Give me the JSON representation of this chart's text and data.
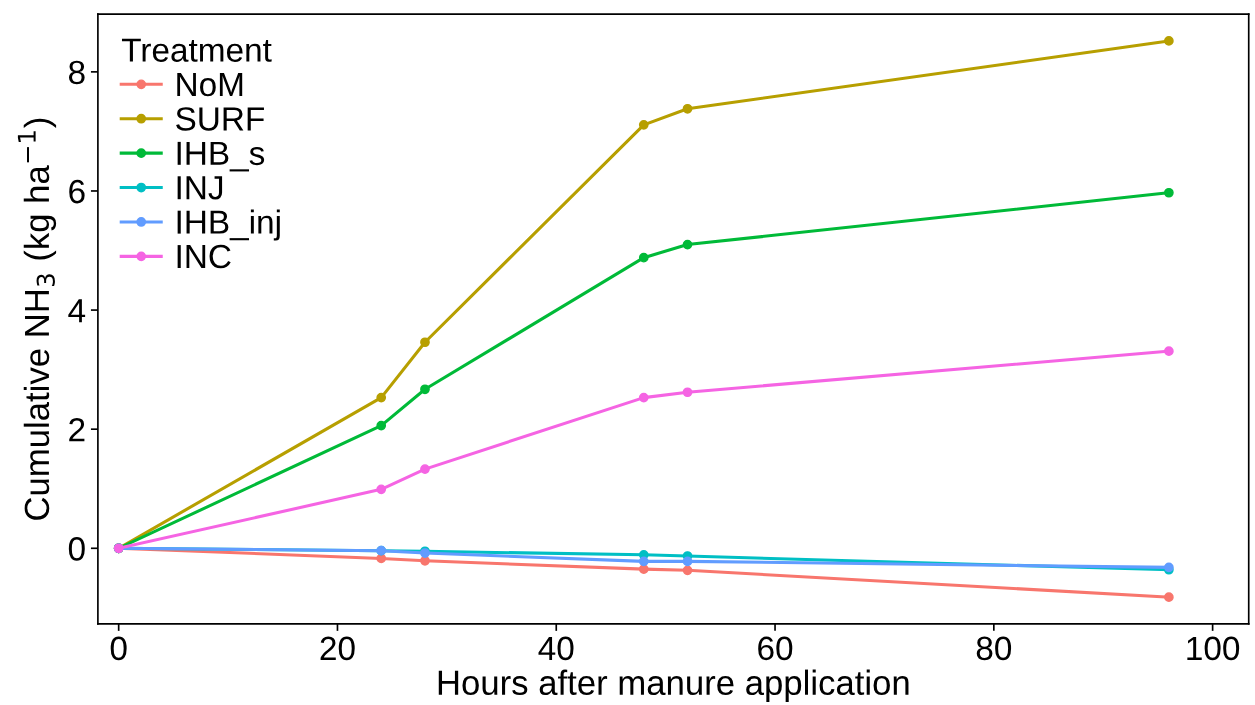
{
  "chart_data": {
    "type": "line",
    "xlabel": "Hours after manure application",
    "ylabel": "Cumulative NH$_{3}$ (kg ha$^{−1}$)",
    "legend_title": "Treatment",
    "x": [
      0,
      24,
      28,
      48,
      52,
      96
    ],
    "series": [
      {
        "name": "NoM",
        "color": "#f8766d",
        "values": [
          0,
          -0.17,
          -0.21,
          -0.35,
          -0.37,
          -0.82
        ]
      },
      {
        "name": "SURF",
        "color": "#b79f00",
        "values": [
          0,
          2.53,
          3.46,
          7.11,
          7.38,
          8.52
        ]
      },
      {
        "name": "IHB_s",
        "color": "#00ba38",
        "values": [
          0,
          2.06,
          2.67,
          4.88,
          5.1,
          5.97
        ]
      },
      {
        "name": "INJ",
        "color": "#00bfc4",
        "values": [
          0,
          -0.04,
          -0.05,
          -0.11,
          -0.13,
          -0.36
        ]
      },
      {
        "name": "IHB_inj",
        "color": "#619cff",
        "values": [
          0,
          -0.04,
          -0.08,
          -0.22,
          -0.22,
          -0.32
        ]
      },
      {
        "name": "INC",
        "color": "#f564e3",
        "values": [
          0,
          0.99,
          1.33,
          2.53,
          2.62,
          3.31
        ]
      }
    ],
    "xlim": [
      -1.9,
      103.3
    ],
    "ylim": [
      -1.27,
      8.97
    ],
    "xticks": [
      0,
      20,
      40,
      60,
      80,
      100
    ],
    "yticks": [
      0,
      2,
      4,
      6,
      8
    ],
    "grid": false,
    "legend": "top left",
    "marker": "circle",
    "line_style": "solid"
  }
}
